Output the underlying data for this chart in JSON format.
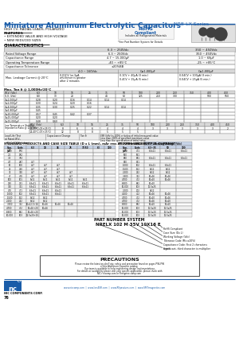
{
  "title": "Miniature Aluminum Electrolytic Capacitors",
  "series": "NRE-LX Series",
  "subtitle": "HIGH CV, RADIAL LEADS, POLARIZED",
  "features_title": "FEATURES",
  "features": [
    "• EXTENDED VALUE AND HIGH VOLTAGE",
    "• NEW REDUCED SIZES"
  ],
  "rohs_line1": "RoHS",
  "rohs_line2": "Compliant",
  "rohs_line3": "Includes all Halogenated Materials",
  "rohs_note": "*See Part Number System for Details",
  "char_title": "CHARACTERISTICS",
  "char_col1": "6.3 ~ 250Vdc",
  "char_col2": "350 ~ 450Vdc",
  "char_rows": [
    [
      "Rated Voltage Range",
      "6.3 ~ 250Vdc",
      "350 ~ 450Vdc"
    ],
    [
      "Capacitance Range",
      "4.7 ~ 15,000μF",
      "1.0 ~ 68μF"
    ],
    [
      "Operating Temperature Range",
      "-40 ~ +85°C",
      "-25 ~ +85°C"
    ],
    [
      "Capacitance Tolerance",
      "±20%BB",
      ""
    ]
  ],
  "leak_label": "Max. Leakage Current @ 20°C",
  "leak_sub_cols": [
    "4.0 ~ 160Vdc",
    "C≥1,000μF",
    "C≤1,000μF"
  ],
  "leak_vals_col1": [
    "0.01CV (or 3μA,",
    "whichever is greater",
    "after 2 minutes"
  ],
  "leak_vals_col2": [
    "0.1CV + 40μA (3 min.)",
    "0.4CV + 15μA (5 min.)"
  ],
  "leak_vals_col3": [
    "0.04CV + 100μA (3 min.)",
    "0.04CV + 25μA (5 min.)"
  ],
  "tan_label": "Max. Tan δ @ 1,000Hz/20°C",
  "tan_row_labels": [
    "W.V. (Vdc)",
    "S.V. (Vdc)",
    "C≤1,000μF",
    "C≤2,000μF",
    "C≤4,000μF",
    "C≤6,800μF",
    "C≤10,000μF",
    "C≤15,000μF",
    "C≥15,000μF"
  ],
  "tan_vdc": [
    "6.3",
    "10",
    "16",
    "25",
    "35",
    "50",
    "100",
    "200",
    "250",
    "350",
    "400",
    "450"
  ],
  "tan_data": [
    [
      "6.3",
      "10",
      "16",
      "25",
      "35",
      "50",
      "100",
      "200",
      "250",
      "350",
      "400",
      "450"
    ],
    [
      "8.0",
      "13",
      "20",
      "",
      "44",
      "63",
      "125",
      "250",
      "300",
      "",
      "500",
      "560"
    ],
    [
      "0.28",
      "0.20",
      "0.16",
      "0.14",
      "0.14",
      "0.14",
      "",
      "",
      "",
      "",
      "",
      ""
    ],
    [
      "0.30",
      "0.24",
      "0.20",
      "0.16",
      "",
      "",
      "",
      "",
      "",
      "",
      "",
      ""
    ],
    [
      "0.35",
      "0.30",
      "0.25",
      "0.22",
      "0.14",
      "0.14",
      "",
      "",
      "",
      "",
      "",
      ""
    ],
    [
      "0.45",
      "",
      "",
      "",
      "",
      "",
      "",
      "",
      "",
      "",
      "",
      ""
    ],
    [
      "0.57",
      "0.45",
      "0.42",
      "0.37",
      "",
      "",
      "",
      "",
      "",
      "",
      "",
      ""
    ],
    [
      "0.20",
      "0.20",
      "",
      "",
      "",
      "",
      "",
      "",
      "",
      "",
      "",
      ""
    ],
    [
      "0.48",
      "0.60",
      "",
      "",
      "",
      "",
      "",
      "",
      "",
      "",
      "",
      ""
    ]
  ],
  "stab_label": "Low Temperature Stability\nImpedance Ratio @ 1,000Hz",
  "stab_row_labels": [
    "W.V. (Vdc)",
    "Z(-25°C)/Z(+25°C)",
    "Z(-40°C)/Z(+25°C)"
  ],
  "stab_data": [
    [
      "6.3",
      "10",
      "16",
      "25",
      "35",
      "50",
      "100",
      "200",
      "250",
      "350",
      "400",
      "450"
    ],
    [
      "8",
      "6",
      "6",
      "4",
      "4",
      "4",
      "3",
      "3",
      "3",
      "3",
      "3",
      "2"
    ],
    [
      "12",
      "8",
      "8",
      "5",
      "5",
      "5",
      "",
      "",
      "",
      "",
      "",
      ""
    ]
  ],
  "life_col1": "Load Life (Test\nat Rated W.V.,\n+85°C 1000h failure)",
  "life_col2": "Capacitance Change",
  "life_col3": "Tan δ",
  "life_col4": "ESR (kHz) is 200% or below of initial measured value\nLess than 200% of specified maximum value\nLess than the specification of initial value",
  "std_title": "STANDARD PRODUCTS AND CASE SIZE TABLE (D x L (mm), mAr rms AT 120Hz AND 85°C)",
  "std_left_hdr": [
    "Cap.\n(μF)",
    "Code",
    "6.3",
    "10",
    "16",
    "25",
    "35/50",
    "63",
    "100"
  ],
  "std_left_cw": [
    14,
    14,
    16,
    16,
    16,
    16,
    20,
    14,
    14
  ],
  "std_left_data": [
    [
      "1.0",
      "1R0",
      "",
      "",
      "",
      "",
      "",
      "",
      ""
    ],
    [
      "2.2",
      "2R2",
      "",
      "",
      "",
      "",
      "",
      "",
      ""
    ],
    [
      "3.3",
      "3R3",
      "",
      "",
      "",
      "",
      "",
      "",
      ""
    ],
    [
      "4.7",
      "4R7",
      "4x7",
      "",
      "",
      "",
      "",
      "",
      ""
    ],
    [
      "10",
      "100",
      "4x7",
      "4x7",
      "4x7",
      "",
      "",
      "",
      ""
    ],
    [
      "22",
      "220",
      "4x7",
      "4x7",
      "4x7",
      "",
      "",
      "",
      ""
    ],
    [
      "33",
      "330",
      "4x7",
      "4x7",
      "4x7",
      "4x7",
      "",
      "",
      ""
    ],
    [
      "47",
      "470",
      "4x7",
      "4x7",
      "4x7",
      "4x7",
      "",
      "",
      ""
    ],
    [
      "100",
      "101",
      "5x11",
      "5x11",
      "5x11",
      "5x11",
      "5x11",
      "",
      ""
    ],
    [
      "220",
      "221",
      "6.3x11",
      "6.3x11",
      "6.3x11",
      "6.3x11",
      "6.3x11",
      "",
      ""
    ],
    [
      "330",
      "331",
      "6.3x11",
      "6.3x11",
      "6.3x11",
      "6.3x11",
      "6.3x11",
      "",
      ""
    ],
    [
      "470",
      "471",
      "6.3x11",
      "6.3x11",
      "6.3x11",
      "",
      "",
      "",
      ""
    ],
    [
      "1,000",
      "102",
      "6.3x11",
      "6.3x11",
      "6.3x11",
      "",
      "",
      "",
      ""
    ],
    [
      "1,500",
      "152",
      "8x12",
      "8x12",
      "",
      "",
      "",
      "",
      ""
    ],
    [
      "2,200",
      "222",
      "8x12",
      "8x12",
      "",
      "",
      "",
      "",
      ""
    ],
    [
      "3,300",
      "332",
      "10x12.5+16",
      "10x16",
      "10x16",
      "10x16",
      "",
      "",
      ""
    ],
    [
      "4,700",
      "472",
      "10x16+20",
      "10x16",
      "",
      "",
      "",
      "",
      ""
    ],
    [
      "6,800",
      "682",
      "10x16+20",
      "",
      "",
      "",
      "",
      "",
      ""
    ],
    [
      "10,000",
      "103",
      "12.5x20+25",
      "",
      "",
      "",
      "",
      "",
      ""
    ]
  ],
  "ripple_title": "PERMISSIBLE RIPPLE CURRENT",
  "std_right_hdr": [
    "Cap.\n(μF)",
    "Code",
    "6.3~35",
    "50",
    "100"
  ],
  "std_right_cw": [
    16,
    16,
    20,
    20,
    20
  ],
  "ripple_vdc_hdr": [
    "Working Voltage (Vdc)",
    "",
    "",
    "",
    ""
  ],
  "std_right_data": [
    [
      "470",
      "471",
      "6.3x11",
      "6.3x11",
      "6.3x11"
    ],
    [
      "560",
      "561",
      "",
      "",
      ""
    ],
    [
      "680",
      "681",
      "6.3x11",
      "6.3x11",
      "6.3x11"
    ],
    [
      "820",
      "821",
      "",
      "",
      ""
    ],
    [
      "1,000",
      "102",
      "6.3x11",
      "6.3x11",
      ""
    ],
    [
      "1,500",
      "152",
      "8x12",
      "8x12",
      ""
    ],
    [
      "2,200",
      "222",
      "8x12",
      "8x12",
      ""
    ],
    [
      "3,300",
      "332",
      "10x16",
      "10x16",
      ""
    ],
    [
      "4,700",
      "472",
      "10x20",
      "10x16",
      ""
    ],
    [
      "6,800",
      "682",
      "10x20",
      "",
      ""
    ],
    [
      "10,000",
      "103",
      "12.5x25",
      "",
      ""
    ],
    [
      "2,000",
      "202",
      "8x12",
      "",
      ""
    ],
    [
      "4,100",
      "412",
      "10x16",
      "10x16",
      ""
    ],
    [
      "4,700",
      "472",
      "10x20",
      "10x16",
      ""
    ],
    [
      "4,700",
      "472",
      "10x16",
      "10x20",
      ""
    ],
    [
      "6,800",
      "682",
      "10x20",
      "10x20",
      ""
    ],
    [
      "10,000",
      "103",
      "12.5x20",
      "12.5x25",
      ""
    ],
    [
      "10,000",
      "103",
      "12.5x20",
      "12.5x25",
      ""
    ],
    [
      "10,000",
      "103",
      "12.5x20",
      "12.5x25",
      ""
    ]
  ],
  "pn_title": "PART NUMBER SYSTEM",
  "pn_example": "NRELX 102 M 35V 10X16 E",
  "pn_labels": [
    "RoHS Compliant",
    "Case Size (Dx L)",
    "Working Voltage (Vdc)",
    "Tolerance Code (M=±20%)",
    "Capacitance Code: First 2 characters\nsignificant, third character is multiplier",
    "Series"
  ],
  "prec_title": "PRECAUTIONS",
  "prec_lines": [
    "Please review the latest on-shelf qty, safety and precaution found on pages P94-P96",
    "of this Aluminum Capacitor catalog.",
    "Our team is available to help engineering design implementations.",
    "For details or availability please visit your specific application, please check with",
    "NIC r nicomp.com or Peregrine.comp.com"
  ],
  "footer_url": "www.niccomp.com  |  www.lossESR.com  |  www.RFpassives.com  |  www.SMTmagnetics.com",
  "page_num": "76",
  "blue": "#1a5ca8",
  "white": "#ffffff",
  "black": "#111111",
  "gray_bg": "#e8e8e8",
  "light_bg": "#f4f4f4"
}
